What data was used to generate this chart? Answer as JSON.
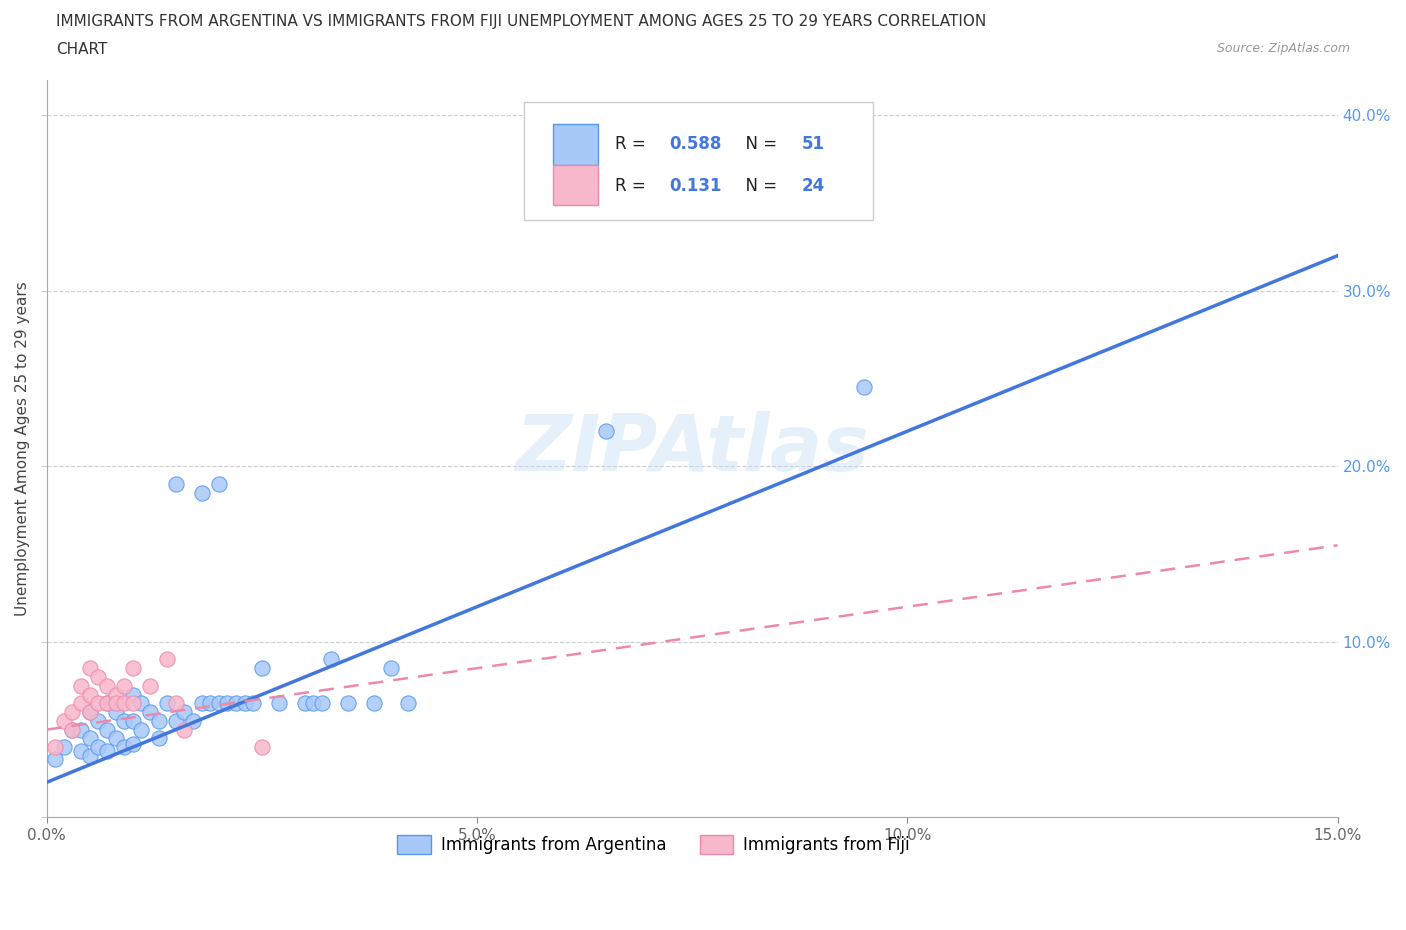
{
  "title_line1": "IMMIGRANTS FROM ARGENTINA VS IMMIGRANTS FROM FIJI UNEMPLOYMENT AMONG AGES 25 TO 29 YEARS CORRELATION",
  "title_line2": "CHART",
  "source": "Source: ZipAtlas.com",
  "ylabel": "Unemployment Among Ages 25 to 29 years",
  "xlim": [
    0.0,
    0.15
  ],
  "ylim": [
    0.0,
    0.42
  ],
  "xticks": [
    0.0,
    0.05,
    0.1,
    0.15
  ],
  "xtick_labels": [
    "0.0%",
    "5.0%",
    "10.0%",
    "15.0%"
  ],
  "yticks": [
    0.0,
    0.1,
    0.2,
    0.3,
    0.4
  ],
  "ytick_labels": [
    "",
    "10.0%",
    "20.0%",
    "30.0%",
    "40.0%"
  ],
  "watermark": "ZIPAtlas",
  "argentina_color": "#a8c8f8",
  "fiji_color": "#f8b8cc",
  "argentina_edge_color": "#5599ee",
  "fiji_edge_color": "#ee88aa",
  "argentina_line_color": "#4477dd",
  "fiji_line_color": "#ee88aa",
  "R_argentina": 0.588,
  "N_argentina": 51,
  "R_fiji": 0.131,
  "N_fiji": 24,
  "argentina_points": [
    [
      0.001,
      0.033
    ],
    [
      0.002,
      0.04
    ],
    [
      0.003,
      0.05
    ],
    [
      0.004,
      0.038
    ],
    [
      0.004,
      0.05
    ],
    [
      0.005,
      0.06
    ],
    [
      0.005,
      0.045
    ],
    [
      0.005,
      0.035
    ],
    [
      0.006,
      0.055
    ],
    [
      0.006,
      0.04
    ],
    [
      0.007,
      0.065
    ],
    [
      0.007,
      0.05
    ],
    [
      0.007,
      0.038
    ],
    [
      0.008,
      0.06
    ],
    [
      0.008,
      0.045
    ],
    [
      0.009,
      0.055
    ],
    [
      0.009,
      0.04
    ],
    [
      0.01,
      0.07
    ],
    [
      0.01,
      0.055
    ],
    [
      0.01,
      0.042
    ],
    [
      0.011,
      0.065
    ],
    [
      0.011,
      0.05
    ],
    [
      0.012,
      0.06
    ],
    [
      0.013,
      0.055
    ],
    [
      0.013,
      0.045
    ],
    [
      0.014,
      0.065
    ],
    [
      0.015,
      0.19
    ],
    [
      0.015,
      0.055
    ],
    [
      0.016,
      0.06
    ],
    [
      0.017,
      0.055
    ],
    [
      0.018,
      0.185
    ],
    [
      0.018,
      0.065
    ],
    [
      0.019,
      0.065
    ],
    [
      0.02,
      0.19
    ],
    [
      0.02,
      0.065
    ],
    [
      0.021,
      0.065
    ],
    [
      0.022,
      0.065
    ],
    [
      0.023,
      0.065
    ],
    [
      0.024,
      0.065
    ],
    [
      0.025,
      0.085
    ],
    [
      0.027,
      0.065
    ],
    [
      0.03,
      0.065
    ],
    [
      0.031,
      0.065
    ],
    [
      0.032,
      0.065
    ],
    [
      0.033,
      0.09
    ],
    [
      0.035,
      0.065
    ],
    [
      0.038,
      0.065
    ],
    [
      0.04,
      0.085
    ],
    [
      0.042,
      0.065
    ],
    [
      0.065,
      0.22
    ],
    [
      0.095,
      0.245
    ]
  ],
  "fiji_points": [
    [
      0.001,
      0.04
    ],
    [
      0.002,
      0.055
    ],
    [
      0.003,
      0.06
    ],
    [
      0.003,
      0.05
    ],
    [
      0.004,
      0.075
    ],
    [
      0.004,
      0.065
    ],
    [
      0.005,
      0.085
    ],
    [
      0.005,
      0.07
    ],
    [
      0.005,
      0.06
    ],
    [
      0.006,
      0.08
    ],
    [
      0.006,
      0.065
    ],
    [
      0.007,
      0.075
    ],
    [
      0.007,
      0.065
    ],
    [
      0.008,
      0.07
    ],
    [
      0.008,
      0.065
    ],
    [
      0.009,
      0.075
    ],
    [
      0.009,
      0.065
    ],
    [
      0.01,
      0.085
    ],
    [
      0.01,
      0.065
    ],
    [
      0.012,
      0.075
    ],
    [
      0.014,
      0.09
    ],
    [
      0.015,
      0.065
    ],
    [
      0.016,
      0.05
    ],
    [
      0.025,
      0.04
    ]
  ],
  "arg_line_x": [
    0.0,
    0.15
  ],
  "arg_line_y": [
    0.02,
    0.32
  ],
  "fiji_line_x": [
    0.0,
    0.15
  ],
  "fiji_line_y": [
    0.05,
    0.155
  ]
}
